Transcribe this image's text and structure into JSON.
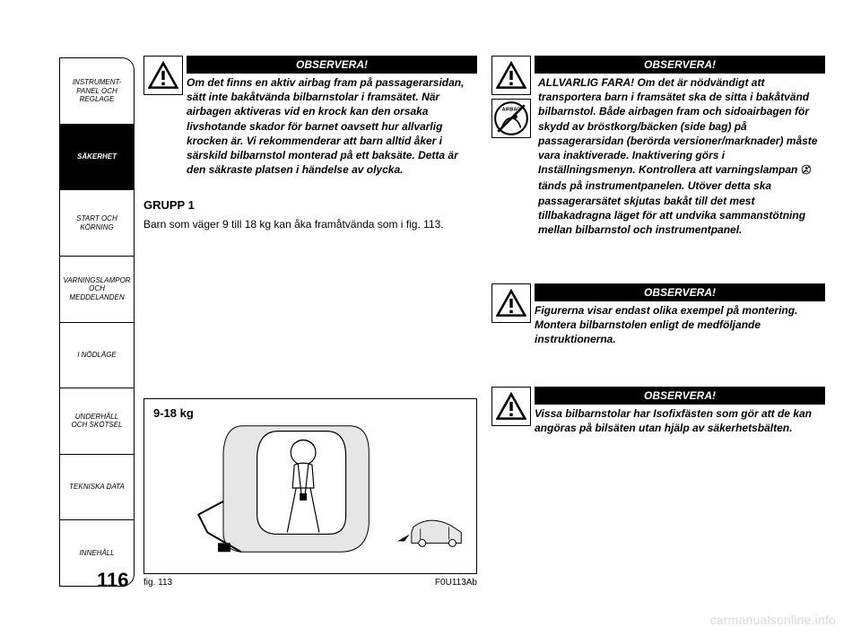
{
  "sidebar": {
    "items": [
      {
        "label": "INSTRUMENT-\nPANEL OCH\nREGLAGE",
        "active": false
      },
      {
        "label": "SÄKERHET",
        "active": true
      },
      {
        "label": "START OCH\nKÖRNING",
        "active": false
      },
      {
        "label": "VARNINGSLAMPOR\nOCH\nMEDDELANDEN",
        "active": false
      },
      {
        "label": "I NÖDLÄGE",
        "active": false
      },
      {
        "label": "UNDERHÅLL\nOCH SKÖTSEL",
        "active": false
      },
      {
        "label": "TEKNISKA DATA",
        "active": false
      },
      {
        "label": "INNEHÅLL",
        "active": false
      }
    ]
  },
  "warn": {
    "header": "OBSERVERA!",
    "left1": "Om det finns en aktiv airbag fram på passagerarsidan, sätt inte bakåtvända bilbarnstolar i framsätet. När airbagen aktiveras vid en krock kan den orsaka livshotande skador för barnet oavsett hur allvarlig krocken är. Vi rekommenderar att barn alltid åker i särskild bilbarnstol monterad på ett baksäte. Detta är den säkraste platsen i händelse av olycka.",
    "right1a": "ALLVARLIG FARA! Om det är nödvändigt att transportera barn i framsätet ska de sitta i bakåtvänd bilbarnstol. Både airbagen fram och sidoairbagen för skydd av bröstkorg/bäcken (side bag) på passagerarsidan (berörda versioner/marknader) måste vara inaktiverade. Inaktivering görs i Inställningsmenyn. Kontrollera att varningslampan",
    "right1b": "tänds på instrumentpanelen. Utöver detta ska passagerarsätet skjutas bakåt till det mest tillbakadragna läget för att undvika sammanstötning mellan bilbarnstol och instrumentpanel.",
    "right2": "Figurerna visar endast olika exempel på montering. Montera bilbarnstolen enligt de medföljande instruktionerna.",
    "right3": "Vissa bilbarnstolar har Isofixfästen som gör att de kan angöras på bilsäten utan hjälp av säkerhetsbälten."
  },
  "group": {
    "title": "GRUPP 1",
    "body": "Barn som väger 9 till 18 kg kan åka framåtvända som i fig. 113."
  },
  "fig": {
    "weight": "9-18 kg",
    "caption_left": "fig. 113",
    "caption_right": "F0U113Ab"
  },
  "page_number": "116",
  "watermark": "carmanualsonline.info",
  "colors": {
    "black": "#000000",
    "white": "#ffffff",
    "watermark": "#d9d9d9",
    "grey_fill": "#e6e6e6"
  }
}
